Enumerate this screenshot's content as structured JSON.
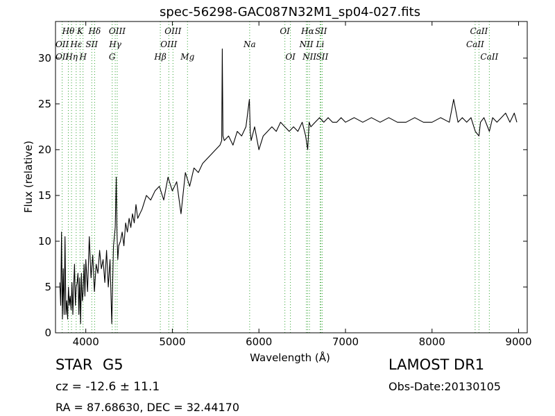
{
  "chart_data": {
    "type": "line",
    "title": "spec-56298-GAC087N32M1_sp04-027.fits",
    "xlabel": "Wavelength (Å)",
    "ylabel": "Flux (relative)",
    "xlim": [
      3650,
      9100
    ],
    "ylim": [
      0,
      34
    ],
    "xticks": [
      4000,
      5000,
      6000,
      7000,
      8000,
      9000
    ],
    "yticks": [
      0,
      5,
      10,
      15,
      20,
      25,
      30
    ],
    "series": [
      {
        "color": "#000000",
        "x": [
          3700,
          3710,
          3720,
          3730,
          3740,
          3750,
          3760,
          3770,
          3780,
          3790,
          3800,
          3810,
          3820,
          3830,
          3840,
          3850,
          3860,
          3870,
          3880,
          3890,
          3900,
          3910,
          3920,
          3930,
          3940,
          3950,
          3960,
          3970,
          3980,
          3990,
          4000,
          4020,
          4040,
          4060,
          4080,
          4100,
          4120,
          4140,
          4160,
          4180,
          4200,
          4220,
          4240,
          4260,
          4280,
          4300,
          4320,
          4340,
          4352,
          4360,
          4370,
          4380,
          4400,
          4420,
          4440,
          4460,
          4480,
          4500,
          4520,
          4540,
          4560,
          4580,
          4600,
          4650,
          4700,
          4750,
          4800,
          4850,
          4900,
          4950,
          5000,
          5050,
          5100,
          5150,
          5200,
          5250,
          5300,
          5350,
          5400,
          5450,
          5500,
          5550,
          5570,
          5577,
          5585,
          5600,
          5650,
          5700,
          5750,
          5800,
          5850,
          5890,
          5900,
          5910,
          5950,
          6000,
          6050,
          6100,
          6150,
          6200,
          6250,
          6300,
          6350,
          6400,
          6450,
          6500,
          6540,
          6563,
          6580,
          6600,
          6650,
          6700,
          6750,
          6800,
          6850,
          6900,
          6950,
          7000,
          7100,
          7200,
          7300,
          7400,
          7500,
          7600,
          7700,
          7800,
          7900,
          8000,
          8100,
          8200,
          8250,
          8300,
          8350,
          8400,
          8450,
          8500,
          8542,
          8560,
          8600,
          8662,
          8700,
          8750,
          8800,
          8850,
          8900,
          8950,
          8980
        ],
        "y": [
          5.5,
          3.0,
          11.0,
          1.5,
          7.0,
          2.0,
          10.5,
          2.0,
          3.5,
          1.5,
          5.0,
          3.0,
          4.0,
          2.5,
          5.5,
          2.0,
          5.0,
          7.5,
          3.0,
          5.0,
          5.5,
          6.5,
          2.0,
          6.0,
          1.0,
          6.5,
          3.5,
          4.5,
          7.5,
          4.0,
          8.0,
          4.5,
          10.5,
          6.0,
          8.5,
          4.5,
          7.5,
          6.5,
          9.0,
          7.0,
          8.0,
          5.5,
          9.0,
          5.0,
          8.0,
          1.0,
          9.5,
          11.5,
          17.0,
          11.0,
          8.0,
          9.5,
          10.0,
          11.0,
          9.5,
          12.0,
          11.0,
          12.5,
          11.5,
          13.0,
          12.0,
          14.0,
          12.5,
          13.5,
          15.0,
          14.5,
          15.5,
          16.0,
          14.5,
          17.0,
          15.5,
          16.5,
          13.0,
          17.5,
          16.0,
          18.0,
          17.5,
          18.5,
          19.0,
          19.5,
          20.0,
          20.5,
          21.0,
          31.0,
          21.5,
          21.0,
          21.5,
          20.5,
          22.0,
          21.5,
          22.5,
          25.5,
          22.0,
          21.0,
          22.5,
          20.0,
          21.5,
          22.0,
          22.5,
          22.0,
          23.0,
          22.5,
          22.0,
          22.5,
          22.0,
          23.0,
          21.5,
          20.0,
          23.0,
          22.5,
          23.0,
          23.5,
          23.0,
          23.5,
          23.0,
          23.0,
          23.5,
          23.0,
          23.5,
          23.0,
          23.5,
          23.0,
          23.5,
          23.0,
          23.0,
          23.5,
          23.0,
          23.0,
          23.5,
          23.0,
          25.5,
          23.0,
          23.5,
          23.0,
          23.5,
          22.0,
          21.5,
          23.0,
          23.5,
          22.0,
          23.5,
          23.0,
          23.5,
          24.0,
          23.0,
          24.0,
          23.0
        ]
      }
    ],
    "lines_top_row": [
      {
        "label": "Hθ",
        "x": 3798
      },
      {
        "label": "K",
        "x": 3934
      },
      {
        "label": "Hδ",
        "x": 4102
      },
      {
        "label": "OIII",
        "x": 4363
      },
      {
        "label": "OIII",
        "x": 5007
      },
      {
        "label": "OI",
        "x": 6300
      },
      {
        "label": "Hα",
        "x": 6563
      },
      {
        "label": "SII",
        "x": 6716
      },
      {
        "label": "CaII",
        "x": 8542
      }
    ],
    "lines_second_row": [
      {
        "label": "OII",
        "x": 3727
      },
      {
        "label": "Hε",
        "x": 3889
      },
      {
        "label": "SII",
        "x": 4069
      },
      {
        "label": "Hγ",
        "x": 4340
      },
      {
        "label": "OIII",
        "x": 4959
      },
      {
        "label": "Na",
        "x": 5893
      },
      {
        "label": "NII",
        "x": 6548
      },
      {
        "label": "Li",
        "x": 6707
      },
      {
        "label": "CaII",
        "x": 8498
      }
    ],
    "lines_third_row": [
      {
        "label": "OII",
        "x": 3727
      },
      {
        "label": "Hη",
        "x": 3835
      },
      {
        "label": "H",
        "x": 3968
      },
      {
        "label": "G",
        "x": 4305
      },
      {
        "label": "Hβ",
        "x": 4861
      },
      {
        "label": "Mg",
        "x": 5175
      },
      {
        "label": "OI",
        "x": 6364
      },
      {
        "label": "NII",
        "x": 6584
      },
      {
        "label": "SII",
        "x": 6731
      },
      {
        "label": "CaII",
        "x": 8662
      }
    ],
    "marker_color": "#2ca02c"
  },
  "footer": {
    "object_class": "STAR",
    "subclass": "G5",
    "cz": "cz = -12.6 ± 11.1",
    "ra_dec": "RA = 87.68630, DEC = 32.44170",
    "survey": "LAMOST DR1",
    "obs_date": "Obs-Date:20130105"
  }
}
